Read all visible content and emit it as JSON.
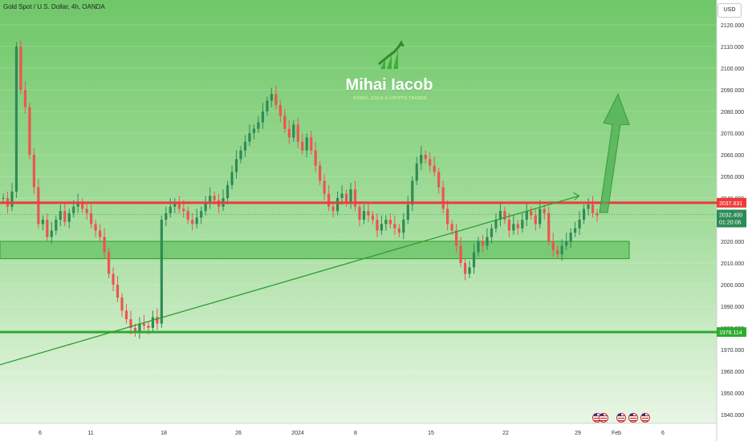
{
  "header": {
    "symbol_title": "Gold Spot / U.S. Dollar, 4h, OANDA",
    "currency": "USD"
  },
  "watermark": {
    "name": "Mihai Iacob",
    "tagline": "FOREX, GOLD & CRYPTO TRADER"
  },
  "colors": {
    "background": "#8fd48a",
    "up_candle": "#2e8b57",
    "down_candle": "#ef5350",
    "resistance": "#ef3a3a",
    "support": "#2eaa2e",
    "trendline": "#2e9e2e",
    "zone": "#55bb55"
  },
  "chart_data": {
    "type": "candlestick",
    "ylim": [
      1940,
      2125
    ],
    "y_ticks": [
      "2120.000",
      "2110.000",
      "2100.000",
      "2090.000",
      "2080.000",
      "2070.000",
      "2060.000",
      "2050.000",
      "2040.000",
      "2030.000",
      "2020.000",
      "2010.000",
      "2000.000",
      "1990.000",
      "1980.000",
      "1970.000",
      "1960.000",
      "1950.000",
      "1940.000"
    ],
    "x_ticks": [
      "6",
      "11",
      "18",
      "26",
      "2024",
      "8",
      "15",
      "22",
      "29",
      "Feb",
      "6"
    ],
    "levels": [
      {
        "name": "resistance",
        "value": 2037.831,
        "label": "2037.831"
      },
      {
        "name": "support",
        "value": 1978.114,
        "label": "1978.114"
      }
    ],
    "current_price": {
      "value": 2032.4,
      "label": "2032.400",
      "countdown": "01:20:06"
    },
    "demand_zone": {
      "low": 2012,
      "high": 2020
    },
    "trendline": [
      {
        "x": 0,
        "y": 1963
      },
      {
        "x": 0.78,
        "y": 2041
      }
    ],
    "projection_arrow": {
      "from": 2037,
      "to": 2088
    },
    "closes": [
      2040,
      2036,
      2043,
      2110,
      2090,
      2082,
      2060,
      2045,
      2028,
      2030,
      2022,
      2025,
      2030,
      2034,
      2029,
      2033,
      2036,
      2038,
      2035,
      2033,
      2028,
      2025,
      2022,
      2015,
      2005,
      2000,
      1994,
      1988,
      1984,
      1980,
      1978,
      1982,
      1981,
      1980,
      1985,
      1982,
      2030,
      2033,
      2036,
      2038,
      2035,
      2034,
      2030,
      2028,
      2031,
      2034,
      2038,
      2041,
      2039,
      2036,
      2040,
      2046,
      2052,
      2058,
      2062,
      2066,
      2070,
      2072,
      2075,
      2080,
      2085,
      2088,
      2083,
      2078,
      2072,
      2068,
      2074,
      2066,
      2062,
      2068,
      2062,
      2055,
      2048,
      2042,
      2036,
      2034,
      2040,
      2042,
      2038,
      2044,
      2036,
      2030,
      2034,
      2032,
      2030,
      2025,
      2028,
      2030,
      2028,
      2026,
      2024,
      2030,
      2037,
      2048,
      2056,
      2060,
      2058,
      2055,
      2052,
      2045,
      2035,
      2028,
      2025,
      2018,
      2010,
      2005,
      2008,
      2015,
      2020,
      2018,
      2022,
      2026,
      2030,
      2034,
      2030,
      2025,
      2028,
      2026,
      2030,
      2034,
      2032,
      2028,
      2035,
      2033,
      2020,
      2016,
      2014,
      2018,
      2020,
      2024,
      2026,
      2030,
      2035,
      2037,
      2033,
      2032
    ]
  }
}
